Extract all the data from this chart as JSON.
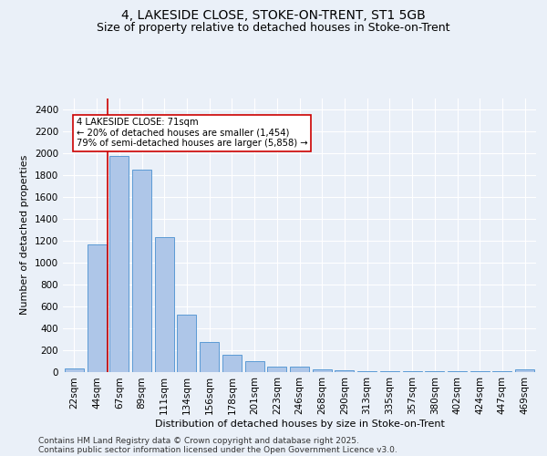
{
  "title_line1": "4, LAKESIDE CLOSE, STOKE-ON-TRENT, ST1 5GB",
  "title_line2": "Size of property relative to detached houses in Stoke-on-Trent",
  "xlabel": "Distribution of detached houses by size in Stoke-on-Trent",
  "ylabel": "Number of detached properties",
  "bar_labels": [
    "22sqm",
    "44sqm",
    "67sqm",
    "89sqm",
    "111sqm",
    "134sqm",
    "156sqm",
    "178sqm",
    "201sqm",
    "223sqm",
    "246sqm",
    "268sqm",
    "290sqm",
    "313sqm",
    "335sqm",
    "357sqm",
    "380sqm",
    "402sqm",
    "424sqm",
    "447sqm",
    "469sqm"
  ],
  "bar_values": [
    30,
    1160,
    1970,
    1850,
    1230,
    520,
    275,
    155,
    95,
    45,
    45,
    20,
    15,
    5,
    5,
    3,
    2,
    2,
    2,
    2,
    20
  ],
  "bar_color": "#aec6e8",
  "bar_edge_color": "#5b9bd5",
  "annotation_text": "4 LAKESIDE CLOSE: 71sqm\n← 20% of detached houses are smaller (1,454)\n79% of semi-detached houses are larger (5,858) →",
  "vline_color": "#cc0000",
  "ylim": [
    0,
    2500
  ],
  "yticks": [
    0,
    200,
    400,
    600,
    800,
    1000,
    1200,
    1400,
    1600,
    1800,
    2000,
    2200,
    2400
  ],
  "footnote_line1": "Contains HM Land Registry data © Crown copyright and database right 2025.",
  "footnote_line2": "Contains public sector information licensed under the Open Government Licence v3.0.",
  "bg_color": "#eaf0f8",
  "plot_bg_color": "#eaf0f8",
  "grid_color": "#ffffff",
  "title_fontsize": 10,
  "subtitle_fontsize": 9,
  "axis_label_fontsize": 8,
  "tick_fontsize": 7.5,
  "footnote_fontsize": 6.5
}
